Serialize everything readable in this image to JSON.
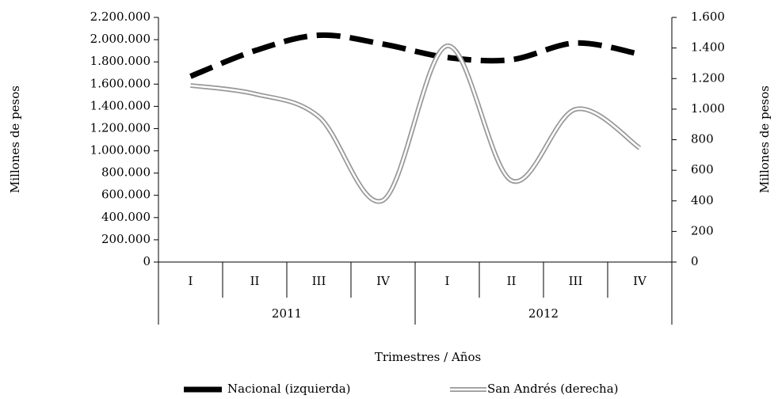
{
  "chart_data": {
    "type": "line",
    "categories": [
      "I",
      "II",
      "III",
      "IV",
      "I",
      "II",
      "III",
      "IV"
    ],
    "years": [
      "2011",
      "2012"
    ],
    "xlabel": "Trimestres / Años",
    "ylabel": "Millones de pesos",
    "y2label": "Millones de pesos",
    "ylim": [
      0,
      2200000
    ],
    "yticks": [
      0,
      {
        "value": 200000,
        "label": "200.000"
      },
      {
        "value": 400000,
        "label": "400.000"
      },
      {
        "value": 600000,
        "label": "600.000"
      },
      {
        "value": 800000,
        "label": "800.000"
      },
      {
        "value": 1000000,
        "label": "1.000.000"
      },
      {
        "value": 1200000,
        "label": "1.200.000"
      },
      {
        "value": 1400000,
        "label": "1.400.000"
      },
      {
        "value": 1600000,
        "label": "1.600.000"
      },
      {
        "value": 1800000,
        "label": "1.800.000"
      },
      {
        "value": 2000000,
        "label": "2.000.000"
      },
      {
        "value": 2200000,
        "label": "2.200.000"
      }
    ],
    "y2lim": [
      0,
      1600
    ],
    "y2ticks": [
      0,
      200,
      400,
      600,
      800,
      {
        "value": 1000,
        "label": "1.000"
      },
      {
        "value": 1200,
        "label": "1.200"
      },
      {
        "value": 1400,
        "label": "1.400"
      },
      {
        "value": 1600,
        "label": "1.600"
      }
    ],
    "smooth": true,
    "series": [
      {
        "name": "Nacional (izquierda)",
        "color": "#000000",
        "line_style": "dashed",
        "axis": "y",
        "values": [
          1670000,
          1900000,
          2040000,
          1960000,
          1840000,
          1820000,
          1970000,
          1870000
        ]
      },
      {
        "name": "San Andrés (derecha)",
        "color": "#999999",
        "line_style": "double",
        "axis": "y2",
        "values": [
          1155,
          1100,
          950,
          404,
          1414,
          533,
          999,
          746
        ]
      }
    ]
  }
}
